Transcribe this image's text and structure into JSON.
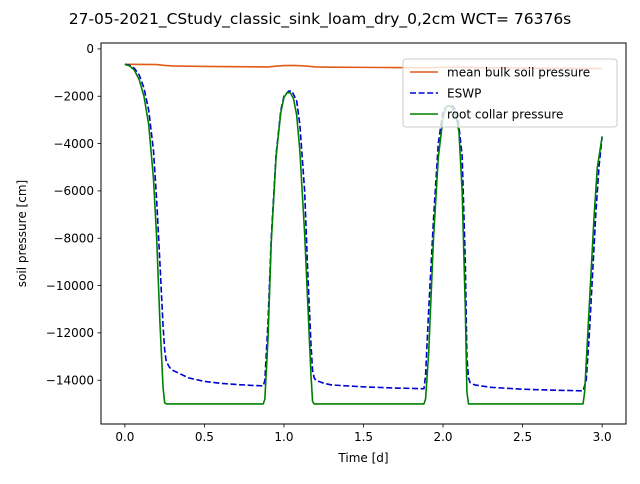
{
  "chart_data": {
    "type": "line",
    "title": "27-05-2021_CStudy_classic_sink_loam_dry_0,2cm  WCT= 76376s",
    "xlabel": "Time [d]",
    "ylabel": "soil pressure [cm]",
    "xlim": [
      -0.15,
      3.15
    ],
    "ylim": [
      -15850,
      250
    ],
    "xticks": [
      0.0,
      0.5,
      1.0,
      1.5,
      2.0,
      2.5,
      3.0
    ],
    "xtick_labels": [
      "0.0",
      "0.5",
      "1.0",
      "1.5",
      "2.0",
      "2.5",
      "3.0"
    ],
    "yticks": [
      0,
      -2000,
      -4000,
      -6000,
      -8000,
      -10000,
      -12000,
      -14000
    ],
    "ytick_labels": [
      "0",
      "−2000",
      "−4000",
      "−6000",
      "−8000",
      "−10000",
      "−12000",
      "−14000"
    ],
    "grid": false,
    "legend_position": "top-right",
    "series": [
      {
        "name": "mean bulk soil pressure",
        "color": "#e05a1a",
        "dash": "solid",
        "x": [
          0.0,
          0.2,
          0.25,
          0.3,
          0.5,
          0.7,
          0.9,
          0.95,
          1.0,
          1.05,
          1.1,
          1.15,
          1.2,
          1.3,
          1.5,
          1.7,
          1.9,
          2.0,
          2.1,
          2.2,
          2.5,
          2.7,
          2.9,
          3.0
        ],
        "y": [
          -650,
          -660,
          -700,
          -720,
          -740,
          -750,
          -760,
          -730,
          -705,
          -700,
          -710,
          -730,
          -760,
          -770,
          -780,
          -790,
          -800,
          -780,
          -770,
          -790,
          -810,
          -820,
          -830,
          -830
        ]
      },
      {
        "name": "ESWP",
        "color": "#0000d0",
        "dash": "dashed",
        "x": [
          0.0,
          0.03,
          0.06,
          0.09,
          0.12,
          0.15,
          0.18,
          0.2,
          0.22,
          0.24,
          0.25,
          0.26,
          0.28,
          0.3,
          0.4,
          0.5,
          0.6,
          0.7,
          0.8,
          0.87,
          0.88,
          0.9,
          0.92,
          0.95,
          0.98,
          1.0,
          1.03,
          1.05,
          1.08,
          1.1,
          1.13,
          1.15,
          1.17,
          1.18,
          1.19,
          1.2,
          1.25,
          1.3,
          1.5,
          1.7,
          1.88,
          1.89,
          1.91,
          1.94,
          1.97,
          2.0,
          2.03,
          2.06,
          2.09,
          2.12,
          2.14,
          2.15,
          2.16,
          2.17,
          2.2,
          2.3,
          2.5,
          2.7,
          2.88,
          2.9,
          2.92,
          2.94,
          2.96,
          2.98,
          3.0
        ],
        "y": [
          -650,
          -690,
          -820,
          -1100,
          -1650,
          -2600,
          -4300,
          -6400,
          -9000,
          -11700,
          -12700,
          -13200,
          -13450,
          -13580,
          -13900,
          -14050,
          -14130,
          -14180,
          -14220,
          -14240,
          -14000,
          -11500,
          -8000,
          -4500,
          -2600,
          -2000,
          -1780,
          -1780,
          -2200,
          -3200,
          -6000,
          -9500,
          -12500,
          -13600,
          -13900,
          -14000,
          -14130,
          -14200,
          -14280,
          -14330,
          -14360,
          -13800,
          -11000,
          -7200,
          -4000,
          -2600,
          -2400,
          -2400,
          -2700,
          -4500,
          -9000,
          -13000,
          -13900,
          -14100,
          -14200,
          -14300,
          -14380,
          -14420,
          -14450,
          -14000,
          -12000,
          -9500,
          -7000,
          -5000,
          -3700
        ]
      },
      {
        "name": "root collar pressure",
        "color": "#008000",
        "dash": "solid",
        "x": [
          0.0,
          0.03,
          0.06,
          0.09,
          0.12,
          0.15,
          0.18,
          0.2,
          0.22,
          0.24,
          0.25,
          0.26,
          0.5,
          0.7,
          0.87,
          0.88,
          0.9,
          0.92,
          0.95,
          0.98,
          1.0,
          1.02,
          1.04,
          1.06,
          1.08,
          1.1,
          1.13,
          1.15,
          1.17,
          1.18,
          1.19,
          1.5,
          1.88,
          1.89,
          1.91,
          1.94,
          1.97,
          2.0,
          2.02,
          2.04,
          2.06,
          2.08,
          2.1,
          2.12,
          2.14,
          2.15,
          2.16,
          2.5,
          2.88,
          2.89,
          2.91,
          2.93,
          2.95,
          2.97,
          3.0
        ],
        "y": [
          -650,
          -720,
          -900,
          -1300,
          -2000,
          -3200,
          -5500,
          -8000,
          -11500,
          -14300,
          -14950,
          -15000,
          -15000,
          -15000,
          -15000,
          -14800,
          -12200,
          -8200,
          -4600,
          -2700,
          -2050,
          -1850,
          -1850,
          -2100,
          -2800,
          -4300,
          -7800,
          -10800,
          -13800,
          -14900,
          -15000,
          -15000,
          -15000,
          -14800,
          -12800,
          -8000,
          -4600,
          -2900,
          -2450,
          -2400,
          -2500,
          -2800,
          -3500,
          -6000,
          -11000,
          -14500,
          -15000,
          -15000,
          -15000,
          -14500,
          -12000,
          -9500,
          -7000,
          -5000,
          -3700
        ]
      }
    ]
  }
}
